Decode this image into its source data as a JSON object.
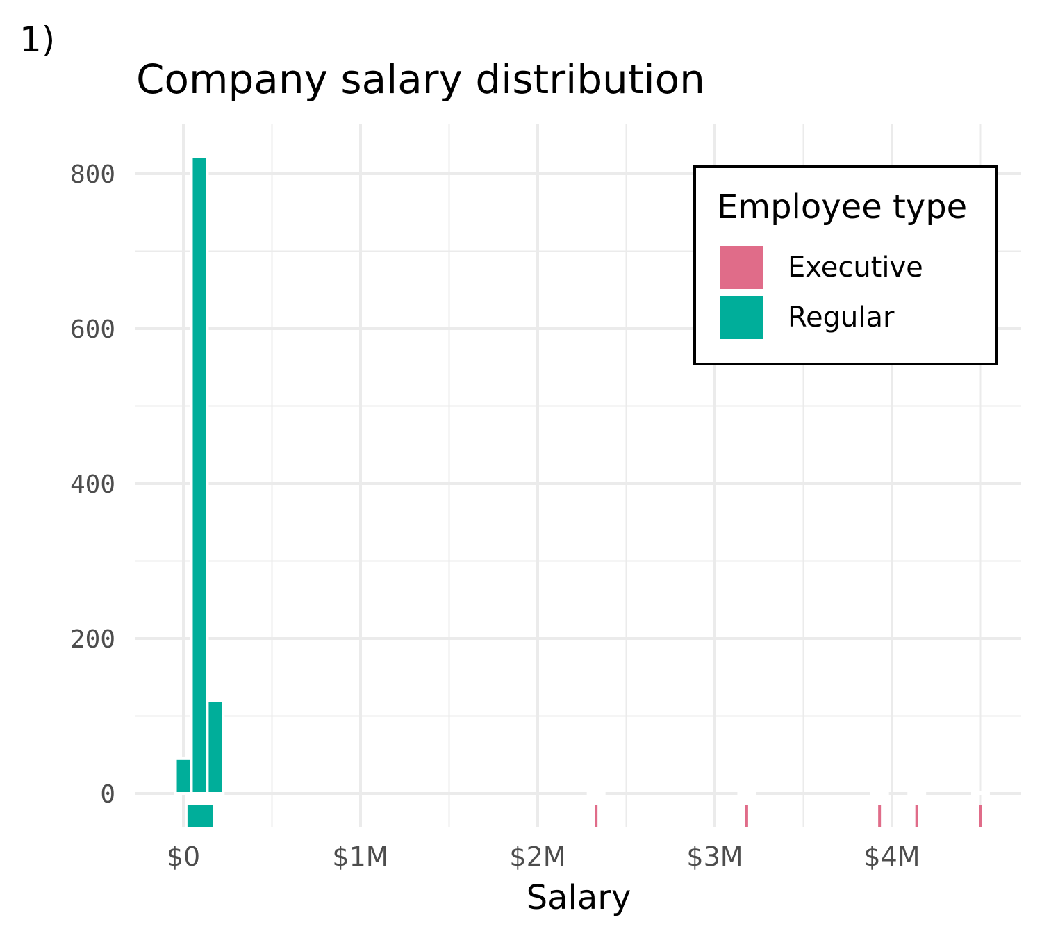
{
  "panel_tag": "1)",
  "chart_data": {
    "type": "bar",
    "title": "Company salary distribution",
    "xlabel": "Salary",
    "ylabel": "",
    "xlim": [
      -0.27,
      4.73
    ],
    "ylim": [
      -40,
      864
    ],
    "x_ticks": [
      0,
      1,
      2,
      3,
      4
    ],
    "x_tick_labels": [
      "$0",
      "$1M",
      "$2M",
      "$3M",
      "$4M"
    ],
    "y_ticks": [
      0,
      200,
      400,
      600,
      800
    ],
    "y_tick_labels": [
      "0",
      "200",
      "400",
      "600",
      "800"
    ],
    "bin_width_millions": 0.09,
    "grid": true,
    "legend": {
      "title": "Employee type",
      "placement": "top-right",
      "entries": [
        "Executive",
        "Regular"
      ]
    },
    "colors": {
      "Executive": "#e06c89",
      "Regular": "#00ae9a"
    },
    "series": [
      {
        "name": "Regular",
        "bin_centers_millions": [
          0,
          0.09,
          0.18
        ],
        "values": [
          45,
          822,
          120
        ]
      },
      {
        "name": "Executive",
        "bin_centers_millions": [
          2.33,
          3.18,
          3.93,
          4.14,
          4.5
        ],
        "values": [
          1,
          1,
          1,
          1,
          1
        ]
      }
    ],
    "rug": {
      "Regular": [
        0.03,
        0.04,
        0.05,
        0.06,
        0.07,
        0.08,
        0.09,
        0.1,
        0.11,
        0.12,
        0.13,
        0.14,
        0.15,
        0.16
      ],
      "Executive": [
        2.33,
        3.18,
        3.93,
        4.14,
        4.5
      ]
    }
  }
}
